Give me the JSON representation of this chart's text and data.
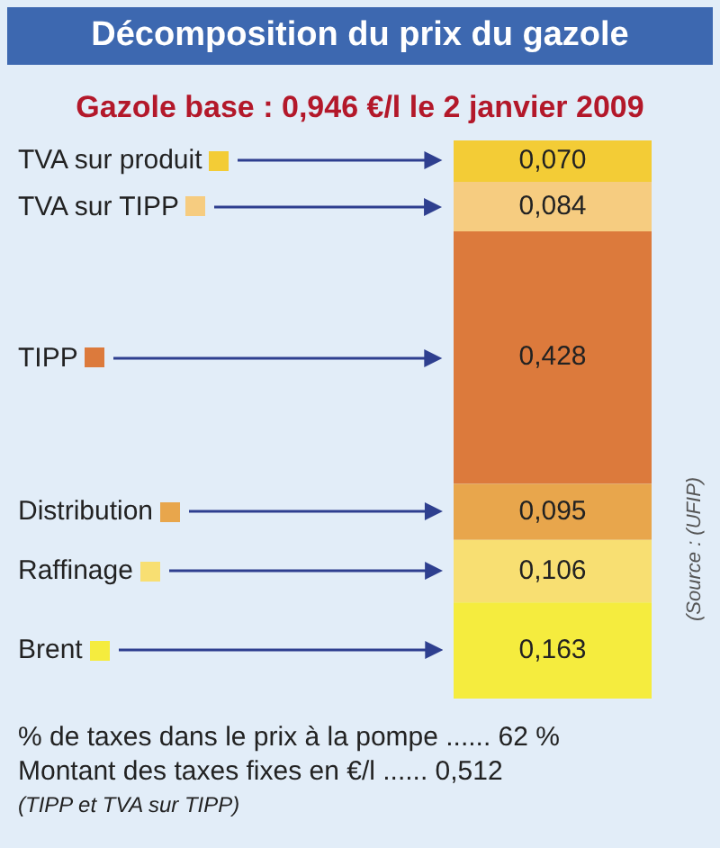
{
  "chart_data": {
    "type": "bar",
    "title": "Décomposition du prix du gazole",
    "subtitle": "Gazole base : 0,946 €/l  le 2 janvier 2009",
    "categories": [
      null
    ],
    "stacked": true,
    "legend": "left",
    "tick_labels": false,
    "ylim": [
      0,
      0.946
    ],
    "series": [
      {
        "name": "Brent",
        "color": "#f5ec3e",
        "values": [
          0.163
        ],
        "value_labels": [
          "0,163"
        ]
      },
      {
        "name": "Raffinage",
        "color": "#f8df72",
        "values": [
          0.106
        ],
        "value_labels": [
          "0,106"
        ]
      },
      {
        "name": "Distribution",
        "color": "#e8a64c",
        "values": [
          0.095
        ],
        "value_labels": [
          "0,095"
        ]
      },
      {
        "name": "TIPP",
        "color": "#dc7a3c",
        "values": [
          0.428
        ],
        "value_labels": [
          "0,428"
        ]
      },
      {
        "name": "TVA sur TIPP",
        "color": "#f6cc80",
        "values": [
          0.084
        ],
        "value_labels": [
          "0,084"
        ]
      },
      {
        "name": "TVA sur produit",
        "color": "#f3cc36",
        "values": [
          0.07
        ],
        "value_labels": [
          "0,070"
        ]
      }
    ],
    "annotations": [
      "% de taxes dans le prix à la pompe ...... 62 %",
      "Montant des taxes fixes en €/l ...... 0,512",
      "(TIPP et TVA sur TIPP)",
      "(Source : (UFIP)"
    ]
  }
}
